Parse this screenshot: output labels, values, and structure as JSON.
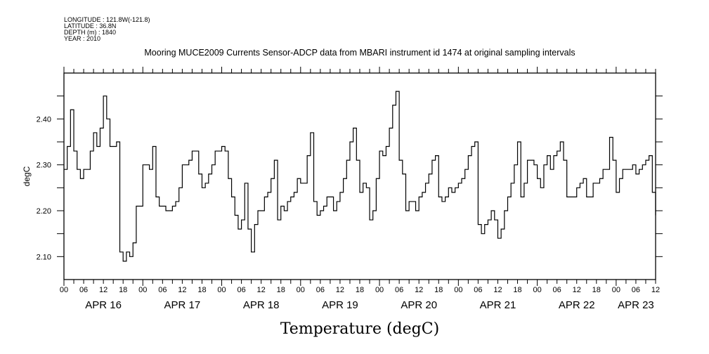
{
  "header": {
    "lines": [
      "LONGITUDE : 121.8W(-121.8)",
      "LATITUDE : 36.8N",
      "DEPTH (m) : 1840",
      "YEAR : 2010"
    ]
  },
  "chart_data": {
    "type": "line",
    "title": "Mooring MUCE2009 Currents Sensor-ADCP data from MBARI instrument id 1474 at original sampling intervals",
    "xlabel": "Temperature (degC)",
    "ylabel": "degC",
    "x_units": "hours since APR 16 2010 00:00",
    "xlim": [
      0,
      180
    ],
    "ylim": [
      2.05,
      2.5
    ],
    "ytick_values": [
      2.1,
      2.2,
      2.3,
      2.4
    ],
    "ytick_labels": [
      "2.10",
      "2.20",
      "2.30",
      "2.40"
    ],
    "xtick_labels": [
      "00",
      "06",
      "12",
      "18",
      "00",
      "06",
      "12",
      "18",
      "00",
      "06",
      "12",
      "18",
      "00",
      "06",
      "12",
      "18",
      "00",
      "06",
      "12",
      "18",
      "00",
      "06",
      "12",
      "18",
      "00",
      "06",
      "12",
      "18",
      "00",
      "06",
      "12"
    ],
    "day_labels": [
      {
        "label": "APR 16",
        "start": 0,
        "end": 24
      },
      {
        "label": "APR 17",
        "start": 24,
        "end": 48
      },
      {
        "label": "APR 18",
        "start": 48,
        "end": 72
      },
      {
        "label": "APR 19",
        "start": 72,
        "end": 96
      },
      {
        "label": "APR 20",
        "start": 96,
        "end": 120
      },
      {
        "label": "APR 21",
        "start": 120,
        "end": 144
      },
      {
        "label": "APR 22",
        "start": 144,
        "end": 168
      },
      {
        "label": "APR 23",
        "start": 168,
        "end": 180
      }
    ],
    "grid": false,
    "series": [
      {
        "name": "Temperature",
        "color": "#000000",
        "values": [
          2.29,
          2.34,
          2.42,
          2.33,
          2.29,
          2.27,
          2.29,
          2.29,
          2.33,
          2.37,
          2.34,
          2.38,
          2.45,
          2.4,
          2.34,
          2.34,
          2.35,
          2.11,
          2.09,
          2.11,
          2.1,
          2.13,
          2.21,
          2.21,
          2.3,
          2.3,
          2.29,
          2.34,
          2.23,
          2.21,
          2.21,
          2.2,
          2.2,
          2.21,
          2.22,
          2.25,
          2.3,
          2.3,
          2.31,
          2.33,
          2.33,
          2.28,
          2.25,
          2.26,
          2.28,
          2.3,
          2.33,
          2.33,
          2.34,
          2.33,
          2.27,
          2.23,
          2.19,
          2.16,
          2.18,
          2.26,
          2.16,
          2.11,
          2.17,
          2.2,
          2.2,
          2.23,
          2.24,
          2.27,
          2.31,
          2.18,
          2.21,
          2.2,
          2.22,
          2.23,
          2.24,
          2.27,
          2.26,
          2.26,
          2.32,
          2.37,
          2.22,
          2.19,
          2.2,
          2.21,
          2.23,
          2.23,
          2.2,
          2.22,
          2.24,
          2.27,
          2.31,
          2.35,
          2.38,
          2.31,
          2.24,
          2.26,
          2.25,
          2.18,
          2.2,
          2.27,
          2.33,
          2.32,
          2.34,
          2.38,
          2.43,
          2.46,
          2.31,
          2.28,
          2.2,
          2.22,
          2.22,
          2.2,
          2.23,
          2.24,
          2.26,
          2.28,
          2.31,
          2.32,
          2.23,
          2.22,
          2.23,
          2.25,
          2.24,
          2.25,
          2.26,
          2.27,
          2.29,
          2.32,
          2.34,
          2.35,
          2.17,
          2.15,
          2.17,
          2.18,
          2.2,
          2.18,
          2.14,
          2.16,
          2.2,
          2.23,
          2.26,
          2.3,
          2.35,
          2.23,
          2.26,
          2.31,
          2.31,
          2.3,
          2.27,
          2.25,
          2.3,
          2.32,
          2.29,
          2.32,
          2.33,
          2.35,
          2.31,
          2.23,
          2.23,
          2.23,
          2.25,
          2.26,
          2.27,
          2.23,
          2.23,
          2.26,
          2.26,
          2.27,
          2.29,
          2.29,
          2.36,
          2.31,
          2.24,
          2.27,
          2.29,
          2.29,
          2.29,
          2.3,
          2.28,
          2.29,
          2.3,
          2.31,
          2.32,
          2.24,
          2.19
        ]
      }
    ]
  }
}
